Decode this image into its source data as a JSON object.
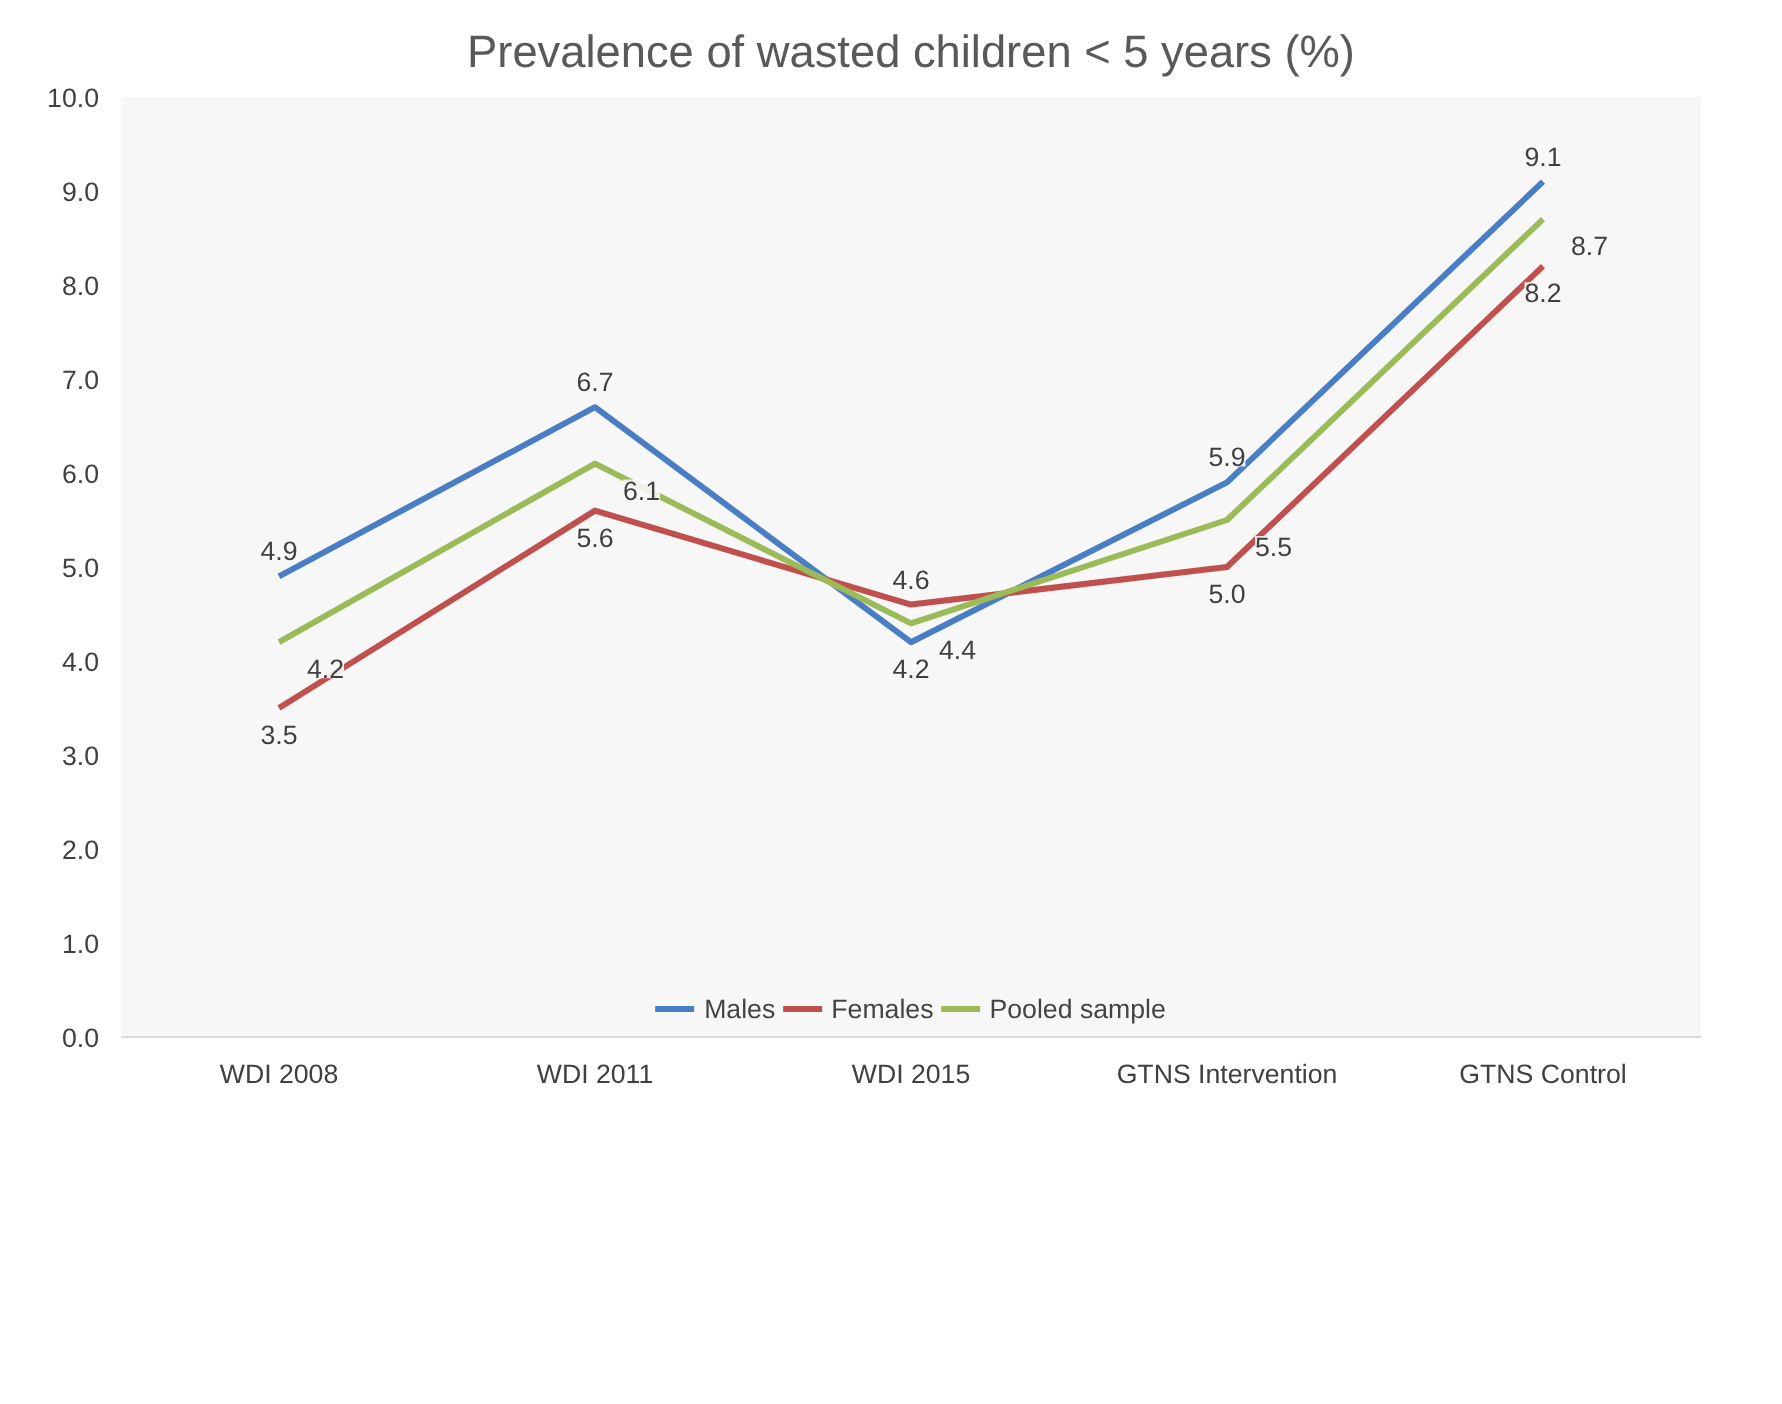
{
  "chart_data": {
    "type": "line",
    "title": "Prevalence of wasted children < 5 years (%)",
    "categories": [
      "WDI 2008",
      "WDI 2011",
      "WDI 2015",
      "GTNS Intervention",
      "GTNS Control"
    ],
    "series": [
      {
        "name": "Males",
        "color": "#4a7ec4",
        "values": [
          4.9,
          6.7,
          4.2,
          5.9,
          9.1
        ],
        "value_labels": [
          "4.9",
          "6.7",
          "4.2",
          "5.9",
          "9.1"
        ]
      },
      {
        "name": "Females",
        "color": "#c0504d",
        "values": [
          3.5,
          5.6,
          4.6,
          5.0,
          8.2
        ],
        "value_labels": [
          "3.5",
          "5.6",
          "4.6",
          "5.0",
          "8.2"
        ]
      },
      {
        "name": "Pooled sample",
        "color": "#9bbb59",
        "values": [
          4.2,
          6.1,
          4.4,
          5.5,
          8.7
        ],
        "value_labels": [
          "4.2",
          "6.1",
          "4.4",
          "5.5",
          "8.7"
        ]
      }
    ],
    "ylim": [
      0,
      10
    ],
    "yticks": [
      {
        "value": 0,
        "label": "0.0"
      },
      {
        "value": 1,
        "label": "1.0"
      },
      {
        "value": 2,
        "label": "2.0"
      },
      {
        "value": 3,
        "label": "3.0"
      },
      {
        "value": 4,
        "label": "4.0"
      },
      {
        "value": 5,
        "label": "5.0"
      },
      {
        "value": 6,
        "label": "6.0"
      },
      {
        "value": 7,
        "label": "7.0"
      },
      {
        "value": 8,
        "label": "8.0"
      },
      {
        "value": 9,
        "label": "9.0"
      },
      {
        "value": 10,
        "label": "10.0"
      }
    ],
    "grid": false,
    "legend": "bottom",
    "marker": "none",
    "line_style": "solid"
  }
}
